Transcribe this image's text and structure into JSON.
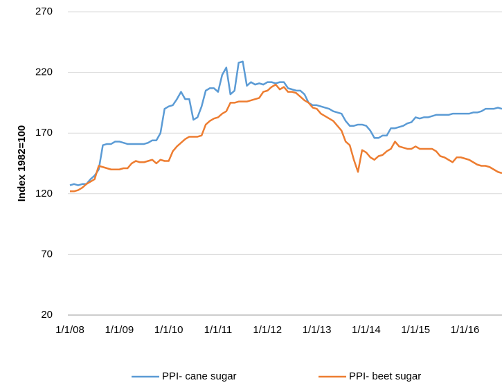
{
  "chart_data": {
    "type": "line",
    "ylabel": "Index 1982=100",
    "categories": [
      "1/1/08",
      null,
      null,
      null,
      null,
      null,
      null,
      null,
      null,
      null,
      null,
      null,
      "1/1/09",
      null,
      null,
      null,
      null,
      null,
      null,
      null,
      null,
      null,
      null,
      null,
      "1/1/10",
      null,
      null,
      null,
      null,
      null,
      null,
      null,
      null,
      null,
      null,
      null,
      "1/1/11",
      null,
      null,
      null,
      null,
      null,
      null,
      null,
      null,
      null,
      null,
      null,
      "1/1/12",
      null,
      null,
      null,
      null,
      null,
      null,
      null,
      null,
      null,
      null,
      null,
      "1/1/13",
      null,
      null,
      null,
      null,
      null,
      null,
      null,
      null,
      null,
      null,
      null,
      "1/1/14",
      null,
      null,
      null,
      null,
      null,
      null,
      null,
      null,
      null,
      null,
      null,
      "1/1/15",
      null,
      null,
      null,
      null,
      null,
      null,
      null,
      null,
      null,
      null,
      null,
      "1/1/16",
      null,
      null,
      null,
      null,
      null,
      null,
      null,
      null,
      null
    ],
    "series": [
      {
        "name": "PPI- cane sugar",
        "color": "#5b9bd5",
        "values": [
          127,
          128,
          127,
          128,
          128,
          132,
          135,
          140,
          160,
          161,
          161,
          163,
          163,
          162,
          161,
          161,
          161,
          161,
          161,
          162,
          164,
          164,
          170,
          190,
          192,
          193,
          198,
          204,
          198,
          198,
          181,
          183,
          192,
          205,
          207,
          207,
          204,
          218,
          224,
          202,
          205,
          228,
          229,
          209,
          212,
          210,
          211,
          210,
          212,
          212,
          211,
          212,
          212,
          207,
          206,
          205,
          205,
          202,
          195,
          193,
          193,
          192,
          191,
          190,
          188,
          187,
          186,
          180,
          176,
          176,
          177,
          177,
          176,
          172,
          166,
          166,
          168,
          168,
          174,
          174,
          175,
          176,
          178,
          179,
          183,
          182,
          183,
          183,
          184,
          185,
          185,
          185,
          185,
          186,
          186,
          186,
          186,
          186,
          187,
          187,
          188,
          190,
          190,
          190,
          191,
          190
        ]
      },
      {
        "name": "PPI- beet sugar",
        "color": "#ed7d31",
        "values": [
          122,
          122,
          123,
          125,
          128,
          130,
          132,
          143,
          142,
          141,
          140,
          140,
          140,
          141,
          141,
          145,
          147,
          146,
          146,
          147,
          148,
          145,
          148,
          147,
          147,
          155,
          159,
          162,
          165,
          167,
          167,
          167,
          168,
          177,
          180,
          182,
          183,
          186,
          188,
          195,
          195,
          196,
          196,
          196,
          197,
          198,
          199,
          204,
          205,
          208,
          210,
          206,
          208,
          204,
          204,
          203,
          200,
          197,
          195,
          191,
          190,
          186,
          184,
          182,
          180,
          176,
          172,
          163,
          160,
          148,
          138,
          156,
          154,
          150,
          148,
          151,
          152,
          155,
          157,
          163,
          159,
          158,
          157,
          157,
          159,
          157,
          157,
          157,
          157,
          155,
          151,
          150,
          148,
          146,
          150,
          150,
          149,
          148,
          146,
          144,
          143,
          143,
          142,
          140,
          138,
          137
        ]
      }
    ],
    "ylim": [
      20,
      270
    ],
    "yticks": [
      20,
      70,
      120,
      170,
      220,
      270
    ],
    "grid": true,
    "legend": "bottom"
  }
}
